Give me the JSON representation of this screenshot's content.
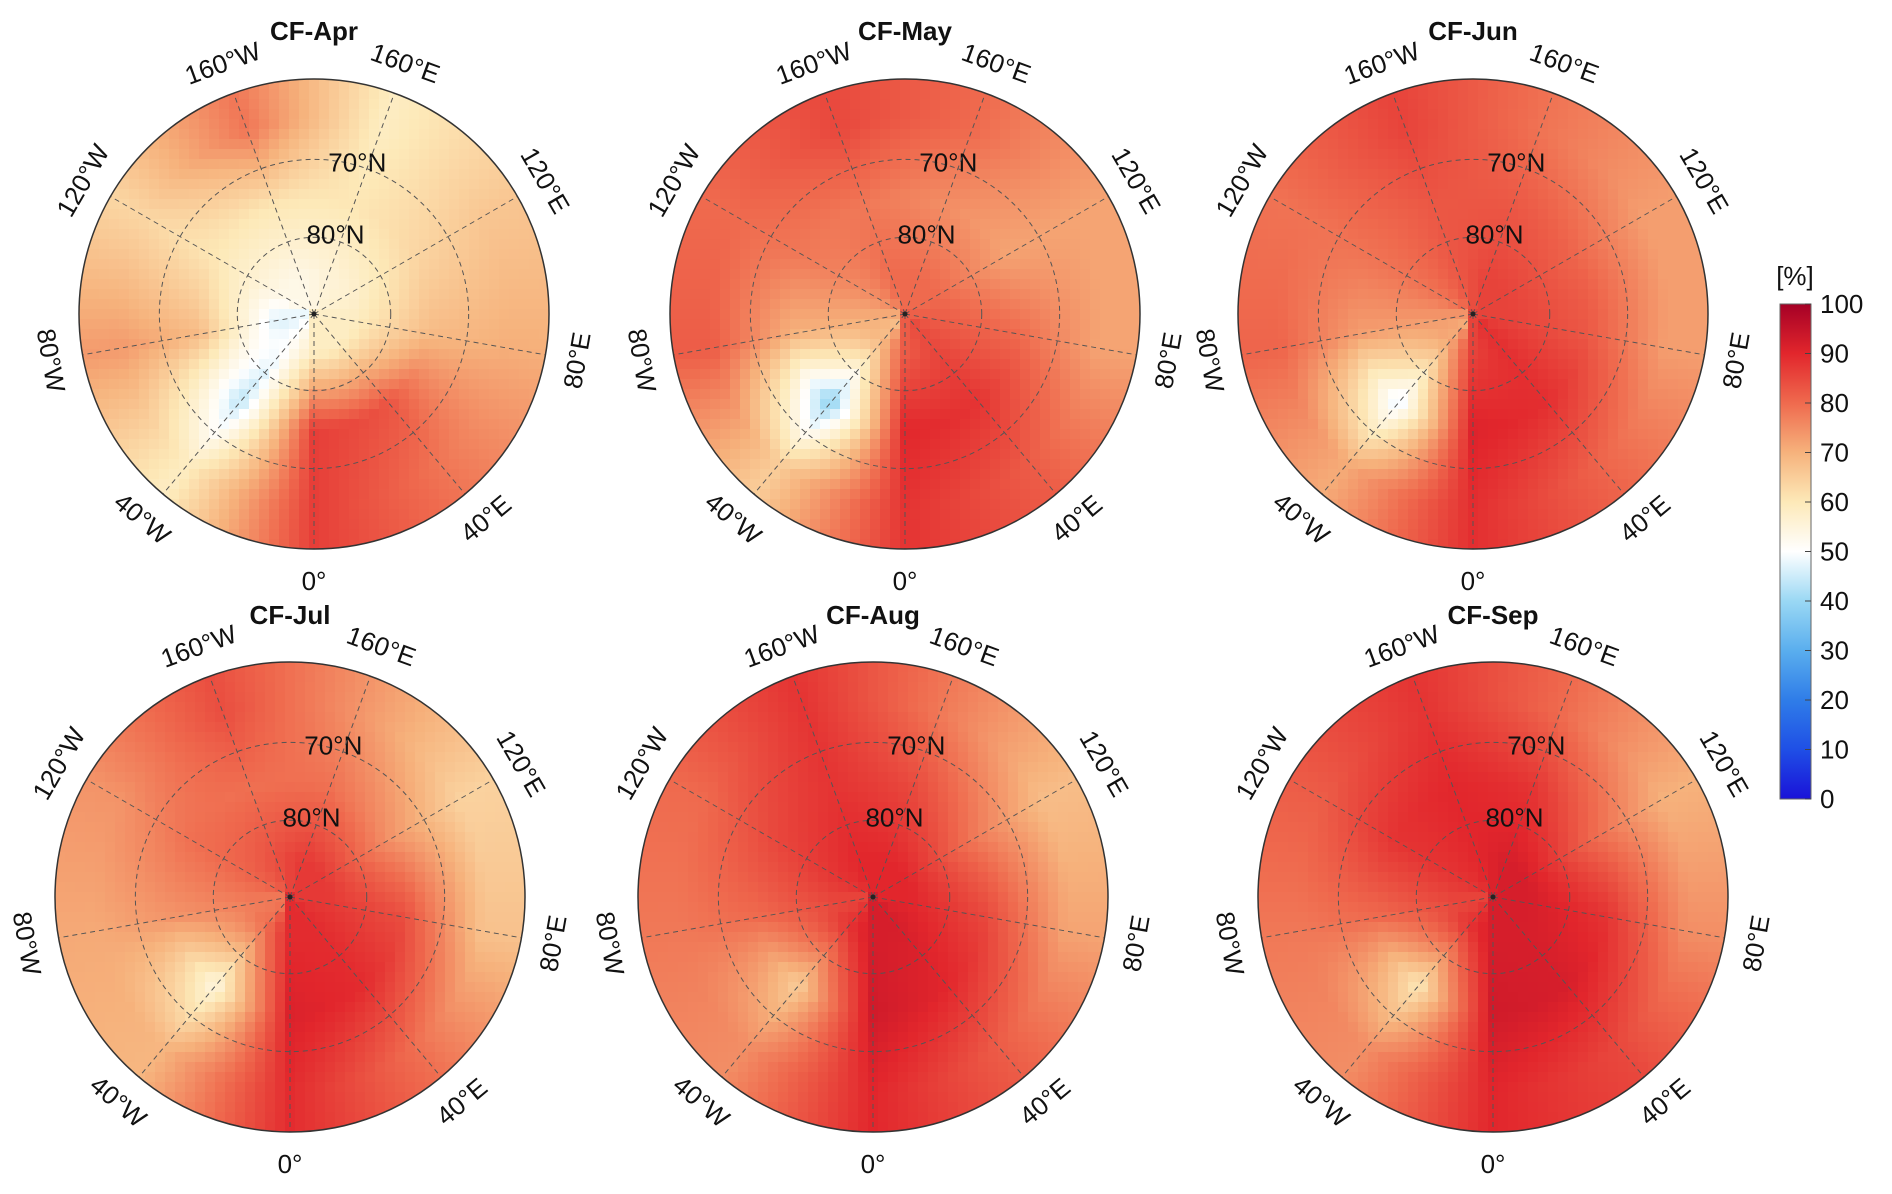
{
  "chart_data": {
    "type": "heatmap",
    "projection": "north polar stereographic",
    "grid": true,
    "meridian_labels": [
      "0°",
      "40°E",
      "80°E",
      "120°E",
      "160°E",
      "160°W",
      "120°W",
      "80°W",
      "40°W"
    ],
    "meridian_lons": [
      0,
      40,
      80,
      120,
      160,
      -160,
      -120,
      -80,
      -40
    ],
    "parallel_labels": [
      "70°N",
      "80°N"
    ],
    "parallel_lats": [
      70,
      80
    ],
    "boundary_lat": 60,
    "sample_lats": [
      85,
      75,
      65
    ],
    "sample_lons": [
      0,
      40,
      80,
      120,
      160,
      200,
      240,
      280,
      320
    ],
    "panels": [
      {
        "title": "CF-Apr",
        "values": [
          [
            60,
            60,
            60,
            58,
            57,
            55,
            55,
            48,
            52
          ],
          [
            88,
            85,
            70,
            65,
            62,
            62,
            62,
            70,
            45
          ],
          [
            88,
            80,
            72,
            68,
            60,
            80,
            65,
            75,
            60
          ]
        ]
      },
      {
        "title": "CF-May",
        "values": [
          [
            82,
            85,
            82,
            80,
            80,
            80,
            75,
            70,
            68
          ],
          [
            90,
            88,
            80,
            72,
            75,
            78,
            78,
            70,
            38
          ],
          [
            88,
            82,
            72,
            72,
            80,
            85,
            80,
            82,
            65
          ]
        ]
      },
      {
        "title": "CF-Jun",
        "values": [
          [
            85,
            88,
            85,
            85,
            85,
            82,
            78,
            72,
            70
          ],
          [
            90,
            88,
            82,
            80,
            82,
            82,
            78,
            72,
            46
          ],
          [
            88,
            80,
            72,
            72,
            78,
            85,
            78,
            80,
            70
          ]
        ]
      },
      {
        "title": "CF-Jul",
        "values": [
          [
            90,
            90,
            88,
            88,
            88,
            85,
            82,
            78,
            80
          ],
          [
            92,
            90,
            85,
            75,
            80,
            80,
            80,
            75,
            55
          ],
          [
            90,
            80,
            68,
            65,
            75,
            85,
            75,
            72,
            70
          ]
        ]
      },
      {
        "title": "CF-Aug",
        "values": [
          [
            92,
            92,
            90,
            90,
            90,
            90,
            88,
            85,
            88
          ],
          [
            93,
            90,
            85,
            78,
            85,
            88,
            85,
            80,
            65
          ],
          [
            90,
            82,
            72,
            68,
            78,
            88,
            80,
            78,
            75
          ]
        ]
      },
      {
        "title": "CF-Sep",
        "values": [
          [
            92,
            92,
            92,
            92,
            92,
            90,
            88,
            85,
            88
          ],
          [
            93,
            92,
            88,
            80,
            88,
            90,
            88,
            80,
            60
          ],
          [
            90,
            85,
            75,
            70,
            80,
            88,
            82,
            78,
            75
          ]
        ]
      }
    ],
    "colorbar": {
      "label": "[%]",
      "range": [
        0,
        100
      ],
      "ticks": [
        "0",
        "10",
        "20",
        "30",
        "40",
        "50",
        "60",
        "70",
        "80",
        "90",
        "100"
      ],
      "colors": [
        "#1a12d8",
        "#1f4fe6",
        "#2f7de8",
        "#5aaeee",
        "#9ad8f4",
        "#ffffff",
        "#fde9b8",
        "#f6b27c",
        "#ef6a4e",
        "#e2262c",
        "#a50026"
      ]
    }
  }
}
